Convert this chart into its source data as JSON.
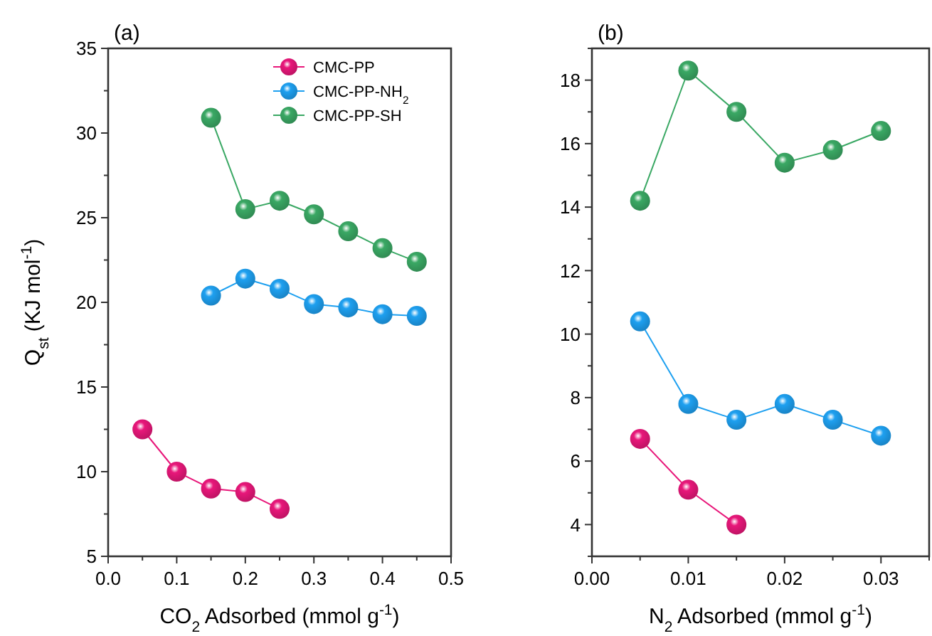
{
  "chart_data": [
    {
      "type": "line",
      "title": "(a)",
      "xlabel": "CO$_{2}$ Adsorbed (mmol g$^{-1}$)",
      "ylabel": "Q$_{st}$ (KJ mol$^{-1}$)",
      "xlim": [
        0,
        0.5
      ],
      "ylim": [
        5,
        35
      ],
      "xticks": [
        {
          "value": 0,
          "label": "0.0"
        },
        {
          "value": 0.05,
          "label": null
        },
        0.1,
        {
          "value": 0.15,
          "label": null
        },
        0.2,
        {
          "value": 0.25,
          "label": null
        },
        0.3,
        {
          "value": 0.35,
          "label": null
        },
        0.4,
        {
          "value": 0.45,
          "label": null
        },
        0.5
      ],
      "yticks": [
        5,
        {
          "value": 7.5,
          "label": null
        },
        10,
        {
          "value": 12.5,
          "label": null
        },
        15,
        {
          "value": 17.5,
          "label": null
        },
        20,
        {
          "value": 22.5,
          "label": null
        },
        25,
        {
          "value": 27.5,
          "label": null
        },
        30,
        {
          "value": 32.5,
          "label": null
        },
        35
      ],
      "marker": "circle",
      "line_style": "solid",
      "legend": "top right",
      "grid": false,
      "series": [
        {
          "name": "CMC-PP",
          "color": "#e8177a",
          "x": [
            0.05,
            0.1,
            0.15,
            0.2,
            0.25
          ],
          "values": [
            12.5,
            10.0,
            9.0,
            8.8,
            7.8
          ]
        },
        {
          "name": "CMC-PP-NH$_{2}$",
          "color": "#1ea0f0",
          "x": [
            0.15,
            0.2,
            0.25,
            0.3,
            0.35,
            0.4,
            0.45
          ],
          "values": [
            20.4,
            21.4,
            20.8,
            19.9,
            19.7,
            19.3,
            19.2
          ]
        },
        {
          "name": "CMC-PP-SH",
          "color": "#3aa864",
          "x": [
            0.15,
            0.2,
            0.25,
            0.3,
            0.35,
            0.4,
            0.45
          ],
          "values": [
            30.9,
            25.5,
            26.0,
            25.2,
            24.2,
            23.2,
            22.4
          ]
        }
      ]
    },
    {
      "type": "line",
      "title": "(b)",
      "xlabel": "N$_{2}$ Adsorbed (mmol g$^{-1}$)",
      "xlim": [
        0,
        0.035
      ],
      "ylim": [
        3,
        19
      ],
      "xticks": [
        {
          "value": 0,
          "label": "0.00"
        },
        {
          "value": 0.005,
          "label": null
        },
        0.01,
        {
          "value": 0.015,
          "label": null
        },
        0.02,
        {
          "value": 0.025,
          "label": null
        },
        0.03,
        {
          "value": 0.035,
          "label": null
        }
      ],
      "yticks": [
        {
          "value": 3,
          "label": null
        },
        4,
        {
          "value": 5,
          "label": null
        },
        6,
        {
          "value": 7,
          "label": null
        },
        8,
        {
          "value": 9,
          "label": null
        },
        10,
        {
          "value": 11,
          "label": null
        },
        12,
        {
          "value": 13,
          "label": null
        },
        14,
        {
          "value": 15,
          "label": null
        },
        16,
        {
          "value": 17,
          "label": null
        },
        18,
        {
          "value": 19,
          "label": null
        }
      ],
      "marker": "circle",
      "line_style": "solid",
      "legend": false,
      "grid": false,
      "series": [
        {
          "color": "#e8177a",
          "x": [
            0.005,
            0.01,
            0.015
          ],
          "values": [
            6.7,
            5.1,
            4.0
          ]
        },
        {
          "color": "#1ea0f0",
          "x": [
            0.005,
            0.01,
            0.015,
            0.02,
            0.025,
            0.03
          ],
          "values": [
            10.4,
            7.8,
            7.3,
            7.8,
            7.3,
            6.8
          ]
        },
        {
          "color": "#3aa864",
          "x": [
            0.005,
            0.01,
            0.015,
            0.02,
            0.025,
            0.03
          ],
          "values": [
            14.2,
            18.3,
            17.0,
            15.4,
            15.8,
            16.4
          ]
        }
      ]
    }
  ]
}
